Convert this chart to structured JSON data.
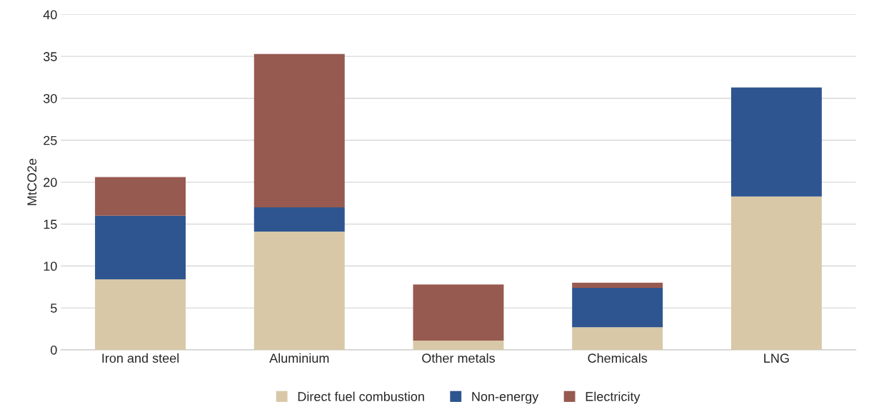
{
  "chart_data": {
    "type": "bar",
    "ylabel": "MtCO2e",
    "categories": [
      "Iron and steel",
      "Aluminium",
      "Other metals",
      "Chemicals",
      "LNG"
    ],
    "stacked": true,
    "series": [
      {
        "name": "Direct fuel combustion",
        "color": "#d8c8a8",
        "values": [
          8.4,
          14.1,
          1.1,
          2.7,
          18.3
        ]
      },
      {
        "name": "Non-energy",
        "color": "#2e5590",
        "values": [
          7.6,
          2.9,
          null,
          4.7,
          13.0
        ]
      },
      {
        "name": "Electricity",
        "color": "#975a50",
        "values": [
          4.6,
          18.3,
          6.7,
          0.6,
          null
        ]
      }
    ],
    "ylim": [
      0,
      40
    ],
    "yticks": [
      0,
      5,
      10,
      15,
      20,
      25,
      30,
      35,
      40
    ],
    "grid": "y",
    "legend": "bottom"
  }
}
